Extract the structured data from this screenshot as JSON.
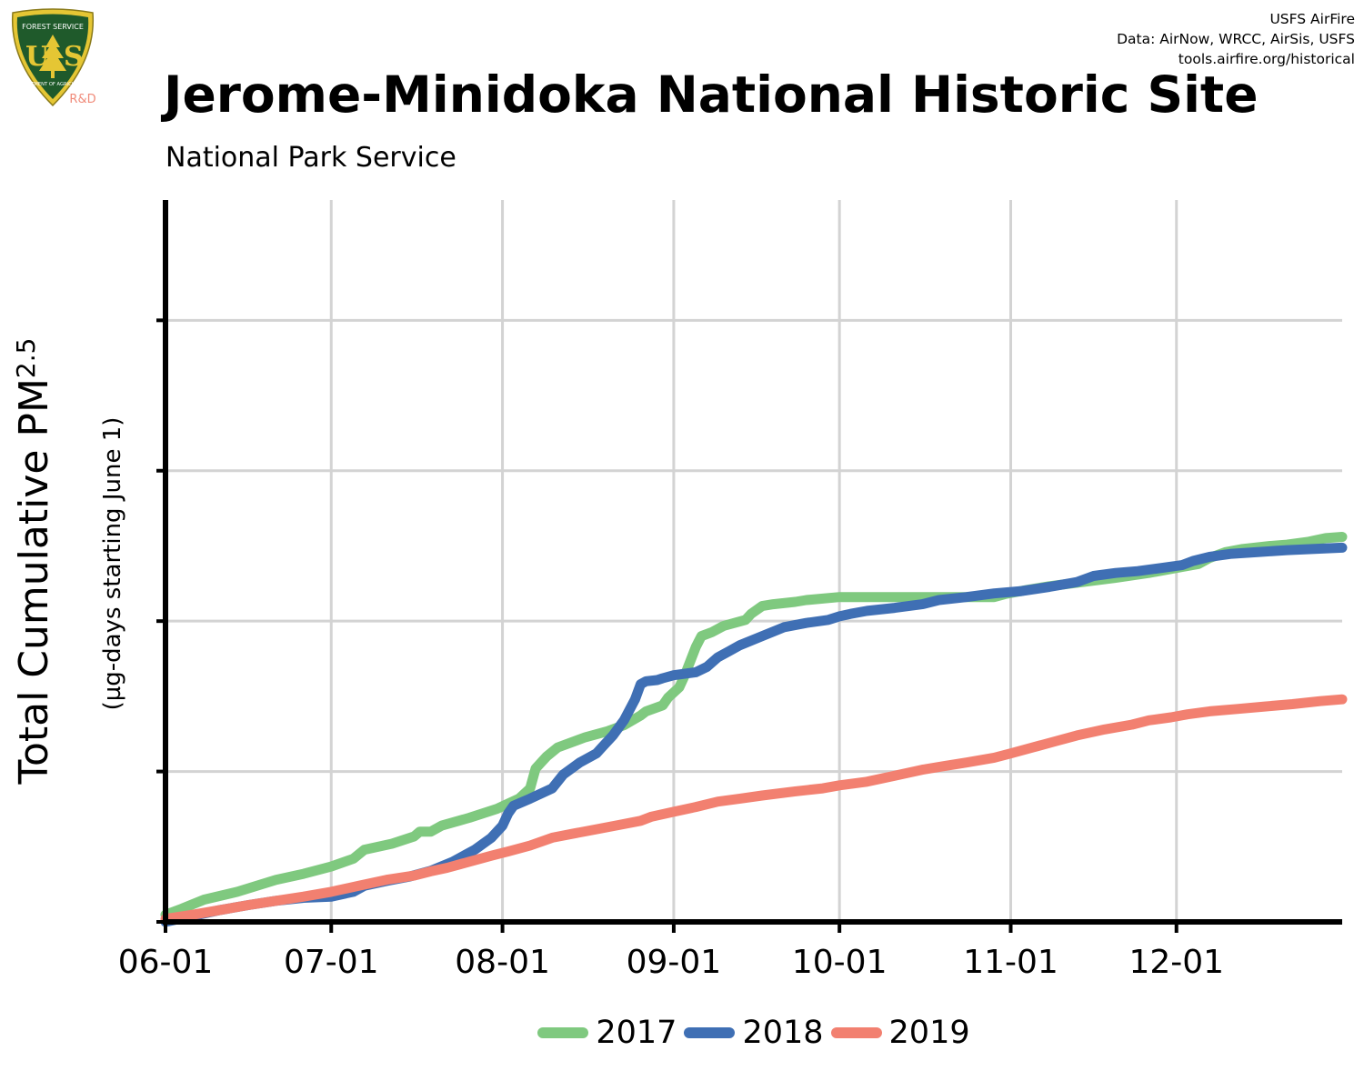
{
  "logo": {
    "icon": "usfs-shield-logo-icon",
    "top_text": "FOREST SERVICE",
    "letters": "U S",
    "bottom_text": "DEPARTMENT OF AGRICULTURE",
    "tag": "R&D",
    "colors": {
      "shield": "#1f5a2b",
      "trim": "#e5c634",
      "tag": "#f08b7a"
    }
  },
  "credits": {
    "line1": "USFS AirFire",
    "line2": "Data: AirNow, WRCC, AirSis, USFS",
    "line3": "tools.airfire.org/historical"
  },
  "header": {
    "title": "Jerome-Minidoka National Historic Site",
    "subtitle": "National Park Service"
  },
  "chart_data": {
    "type": "line",
    "title": "Jerome-Minidoka National Historic Site",
    "subtitle": "National Park Service",
    "ylabel": "Total Cumulative PM2.5",
    "ylabel_main": "Total Cumulative PM",
    "ylabel_sub": "2.5",
    "ylabel2": "(µg-days starting June 1)",
    "xlabel": "",
    "x_ticks": [
      "06-01",
      "07-01",
      "08-01",
      "09-01",
      "10-01",
      "11-01",
      "12-01"
    ],
    "x_tick_days": [
      0,
      30,
      61,
      92,
      122,
      153,
      183
    ],
    "xlim": [
      0,
      213
    ],
    "y_ticks_labeled": false,
    "ylim": [
      0,
      1.2
    ],
    "y_gridlines": [
      0,
      0.25,
      0.5,
      0.75,
      1.0
    ],
    "grid": true,
    "legend_position": "bottom",
    "x_units": "days since 06-01",
    "series": [
      {
        "name": "2017",
        "color": "#7fc97f",
        "points": [
          [
            0,
            0.012
          ],
          [
            3,
            0.022
          ],
          [
            7,
            0.037
          ],
          [
            13,
            0.05
          ],
          [
            20,
            0.07
          ],
          [
            25,
            0.08
          ],
          [
            30,
            0.092
          ],
          [
            34,
            0.105
          ],
          [
            36,
            0.12
          ],
          [
            41,
            0.13
          ],
          [
            45,
            0.142
          ],
          [
            46,
            0.15
          ],
          [
            48,
            0.15
          ],
          [
            50,
            0.16
          ],
          [
            55,
            0.173
          ],
          [
            60,
            0.188
          ],
          [
            64,
            0.205
          ],
          [
            66,
            0.222
          ],
          [
            67,
            0.255
          ],
          [
            69,
            0.275
          ],
          [
            71,
            0.29
          ],
          [
            76,
            0.307
          ],
          [
            80,
            0.317
          ],
          [
            83,
            0.327
          ],
          [
            86,
            0.343
          ],
          [
            87,
            0.35
          ],
          [
            90,
            0.36
          ],
          [
            91,
            0.373
          ],
          [
            93,
            0.39
          ],
          [
            94,
            0.41
          ],
          [
            96,
            0.457
          ],
          [
            97,
            0.475
          ],
          [
            99,
            0.482
          ],
          [
            101,
            0.492
          ],
          [
            105,
            0.502
          ],
          [
            106,
            0.512
          ],
          [
            108,
            0.525
          ],
          [
            110,
            0.528
          ],
          [
            114,
            0.532
          ],
          [
            116,
            0.535
          ],
          [
            122,
            0.54
          ],
          [
            130,
            0.54
          ],
          [
            140,
            0.54
          ],
          [
            150,
            0.54
          ],
          [
            152,
            0.545
          ],
          [
            156,
            0.552
          ],
          [
            160,
            0.558
          ],
          [
            166,
            0.565
          ],
          [
            172,
            0.572
          ],
          [
            178,
            0.58
          ],
          [
            184,
            0.59
          ],
          [
            187,
            0.595
          ],
          [
            189,
            0.605
          ],
          [
            192,
            0.615
          ],
          [
            195,
            0.62
          ],
          [
            200,
            0.625
          ],
          [
            203,
            0.627
          ],
          [
            207,
            0.632
          ],
          [
            210,
            0.638
          ],
          [
            213,
            0.64
          ]
        ]
      },
      {
        "name": "2018",
        "color": "#3f6fb4",
        "points": [
          [
            0,
            0.0
          ],
          [
            5,
            0.01
          ],
          [
            10,
            0.02
          ],
          [
            15,
            0.028
          ],
          [
            20,
            0.035
          ],
          [
            25,
            0.04
          ],
          [
            30,
            0.042
          ],
          [
            34,
            0.05
          ],
          [
            36,
            0.06
          ],
          [
            40,
            0.068
          ],
          [
            44,
            0.075
          ],
          [
            48,
            0.085
          ],
          [
            52,
            0.1
          ],
          [
            56,
            0.12
          ],
          [
            59,
            0.14
          ],
          [
            61,
            0.16
          ],
          [
            62,
            0.18
          ],
          [
            63,
            0.193
          ],
          [
            66,
            0.205
          ],
          [
            70,
            0.222
          ],
          [
            72,
            0.245
          ],
          [
            75,
            0.265
          ],
          [
            78,
            0.28
          ],
          [
            79,
            0.29
          ],
          [
            81,
            0.31
          ],
          [
            83,
            0.335
          ],
          [
            85,
            0.37
          ],
          [
            86,
            0.395
          ],
          [
            87,
            0.4
          ],
          [
            89,
            0.402
          ],
          [
            90,
            0.405
          ],
          [
            92,
            0.41
          ],
          [
            96,
            0.415
          ],
          [
            98,
            0.424
          ],
          [
            100,
            0.44
          ],
          [
            102,
            0.45
          ],
          [
            104,
            0.46
          ],
          [
            108,
            0.475
          ],
          [
            112,
            0.49
          ],
          [
            116,
            0.497
          ],
          [
            120,
            0.502
          ],
          [
            122,
            0.508
          ],
          [
            124,
            0.512
          ],
          [
            127,
            0.517
          ],
          [
            132,
            0.522
          ],
          [
            137,
            0.528
          ],
          [
            140,
            0.535
          ],
          [
            145,
            0.54
          ],
          [
            150,
            0.546
          ],
          [
            155,
            0.55
          ],
          [
            160,
            0.557
          ],
          [
            165,
            0.565
          ],
          [
            168,
            0.575
          ],
          [
            172,
            0.58
          ],
          [
            176,
            0.583
          ],
          [
            180,
            0.588
          ],
          [
            184,
            0.593
          ],
          [
            186,
            0.6
          ],
          [
            189,
            0.607
          ],
          [
            193,
            0.612
          ],
          [
            198,
            0.615
          ],
          [
            203,
            0.618
          ],
          [
            208,
            0.62
          ],
          [
            213,
            0.622
          ]
        ]
      },
      {
        "name": "2019",
        "color": "#f28070",
        "points": [
          [
            0,
            0.005
          ],
          [
            5,
            0.012
          ],
          [
            10,
            0.02
          ],
          [
            15,
            0.028
          ],
          [
            20,
            0.035
          ],
          [
            25,
            0.042
          ],
          [
            30,
            0.05
          ],
          [
            35,
            0.06
          ],
          [
            40,
            0.07
          ],
          [
            45,
            0.077
          ],
          [
            48,
            0.084
          ],
          [
            51,
            0.09
          ],
          [
            55,
            0.1
          ],
          [
            59,
            0.11
          ],
          [
            62,
            0.117
          ],
          [
            66,
            0.127
          ],
          [
            70,
            0.14
          ],
          [
            74,
            0.147
          ],
          [
            78,
            0.154
          ],
          [
            82,
            0.161
          ],
          [
            86,
            0.168
          ],
          [
            88,
            0.175
          ],
          [
            92,
            0.183
          ],
          [
            96,
            0.191
          ],
          [
            100,
            0.2
          ],
          [
            104,
            0.205
          ],
          [
            108,
            0.21
          ],
          [
            114,
            0.217
          ],
          [
            119,
            0.222
          ],
          [
            122,
            0.227
          ],
          [
            127,
            0.233
          ],
          [
            132,
            0.243
          ],
          [
            137,
            0.253
          ],
          [
            141,
            0.259
          ],
          [
            145,
            0.265
          ],
          [
            150,
            0.273
          ],
          [
            153,
            0.28
          ],
          [
            157,
            0.29
          ],
          [
            161,
            0.3
          ],
          [
            165,
            0.31
          ],
          [
            170,
            0.32
          ],
          [
            175,
            0.328
          ],
          [
            178,
            0.335
          ],
          [
            182,
            0.34
          ],
          [
            185,
            0.345
          ],
          [
            189,
            0.35
          ],
          [
            194,
            0.354
          ],
          [
            199,
            0.358
          ],
          [
            204,
            0.362
          ],
          [
            209,
            0.367
          ],
          [
            213,
            0.37
          ]
        ]
      }
    ]
  }
}
